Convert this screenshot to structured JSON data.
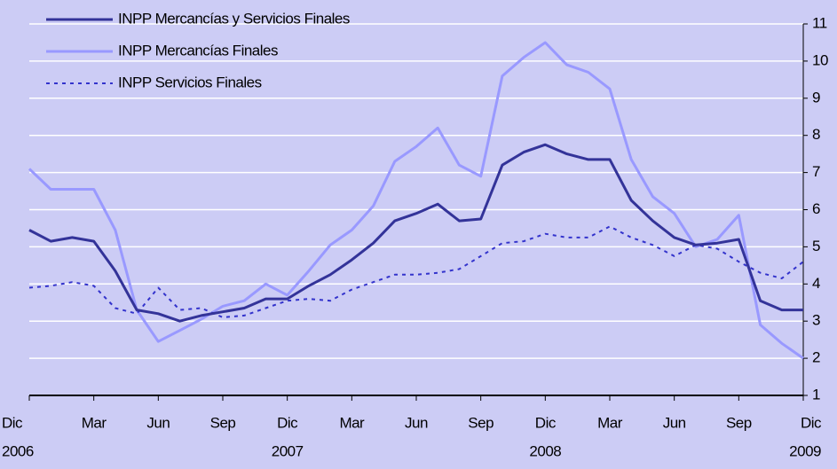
{
  "chart_data": {
    "type": "line",
    "categories": [
      "Dic",
      null,
      null,
      "Mar",
      null,
      null,
      "Jun",
      null,
      null,
      "Sep",
      null,
      null,
      "Dic",
      null,
      null,
      "Mar",
      null,
      null,
      "Jun",
      null,
      null,
      "Sep",
      null,
      null,
      "Dic",
      null,
      null,
      "Mar",
      null,
      null,
      "Jun",
      null,
      null,
      "Sep",
      null,
      null,
      "Dic"
    ],
    "years": [
      "2006",
      "2007",
      "2008",
      "2009"
    ],
    "series": [
      {
        "name": "INPP Mercancías y Servicios Finales",
        "color": "#333399",
        "style": "solid",
        "width": 3,
        "values": [
          5.45,
          5.15,
          5.25,
          5.15,
          4.35,
          3.3,
          3.2,
          3.0,
          3.15,
          3.25,
          3.35,
          3.6,
          3.6,
          3.95,
          4.25,
          4.65,
          5.1,
          5.7,
          5.9,
          6.15,
          5.7,
          5.75,
          7.2,
          7.55,
          7.75,
          7.5,
          7.35,
          7.35,
          6.25,
          5.7,
          5.25,
          5.05,
          5.1,
          5.2,
          3.55,
          3.3,
          3.3
        ]
      },
      {
        "name": "INPP Mercancías Finales",
        "color": "#9999ff",
        "style": "solid",
        "width": 3,
        "values": [
          7.1,
          6.55,
          6.55,
          6.55,
          5.45,
          3.3,
          2.45,
          2.75,
          3.05,
          3.4,
          3.55,
          4.0,
          3.7,
          4.35,
          5.05,
          5.45,
          6.1,
          7.3,
          7.7,
          8.2,
          7.2,
          6.9,
          9.6,
          10.1,
          10.5,
          9.9,
          9.7,
          9.25,
          7.35,
          6.35,
          5.9,
          5.0,
          5.2,
          5.85,
          2.9,
          2.4,
          2.0
        ]
      },
      {
        "name": "INPP Servicios Finales",
        "color": "#3333cc",
        "style": "dotted",
        "width": 2,
        "values": [
          3.9,
          3.95,
          4.05,
          3.95,
          3.35,
          3.2,
          3.9,
          3.3,
          3.35,
          3.1,
          3.15,
          3.35,
          3.55,
          3.6,
          3.55,
          3.85,
          4.05,
          4.25,
          4.25,
          4.3,
          4.4,
          4.75,
          5.1,
          5.15,
          5.35,
          5.25,
          5.25,
          5.55,
          5.25,
          5.05,
          4.75,
          5.05,
          4.95,
          4.6,
          4.3,
          4.15,
          4.6
        ]
      }
    ],
    "ylim": [
      1,
      11
    ],
    "yticks": [
      1,
      2,
      3,
      4,
      5,
      6,
      7,
      8,
      9,
      10,
      11
    ],
    "grid": true,
    "background": "#ccccf5",
    "legend": "top-left"
  }
}
